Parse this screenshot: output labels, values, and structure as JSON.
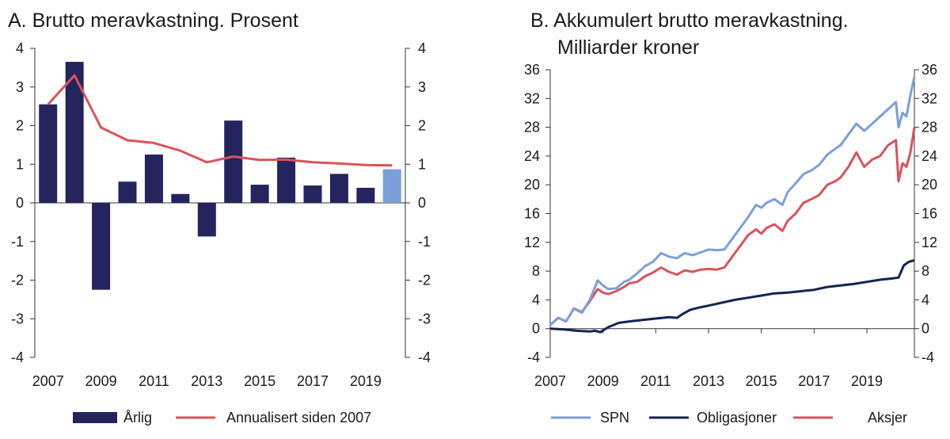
{
  "chart_data": [
    {
      "panel": "A",
      "type": "bar",
      "title": "A.  Brutto meravkastning. Prosent",
      "categories": [
        "2007",
        "2008",
        "2009",
        "2010",
        "2011",
        "2012",
        "2013",
        "2014",
        "2015",
        "2016",
        "2017",
        "2018",
        "2019",
        "2020"
      ],
      "x_tick_labels": [
        "2007",
        "2009",
        "2011",
        "2013",
        "2015",
        "2017",
        "2019"
      ],
      "ylim": [
        -4,
        4
      ],
      "y_ticks": [
        "4",
        "3",
        "2",
        "1",
        "0",
        "-1",
        "-2",
        "-3",
        "-4"
      ],
      "series": [
        {
          "name": "Årlig",
          "type": "bar",
          "color": "#24245e",
          "values": [
            2.55,
            3.65,
            -2.25,
            0.55,
            1.25,
            0.23,
            -0.87,
            2.13,
            0.47,
            1.17,
            0.45,
            0.75,
            0.39,
            0.87
          ],
          "highlight_last": true,
          "highlight_color": "#7b9fd9"
        },
        {
          "name": "Annualisert siden 2007",
          "type": "line",
          "color": "#d9535b",
          "values": [
            2.55,
            3.3,
            1.95,
            1.62,
            1.55,
            1.35,
            1.05,
            1.2,
            1.11,
            1.12,
            1.05,
            1.02,
            0.98,
            0.97
          ]
        }
      ],
      "grid": false,
      "legend_position": "bottom"
    },
    {
      "panel": "B",
      "type": "line",
      "title_line1": "B.  Akkumulert brutto meravkastning.",
      "title_line2": "Milliarder kroner",
      "x_tick_labels": [
        "2007",
        "2009",
        "2011",
        "2013",
        "2015",
        "2017",
        "2019"
      ],
      "xlim": [
        2007,
        2020.8
      ],
      "ylim": [
        -4,
        36
      ],
      "y_ticks": [
        "36",
        "32",
        "28",
        "24",
        "20",
        "16",
        "12",
        "8",
        "4",
        "0",
        "-4"
      ],
      "series": [
        {
          "name": "SPN",
          "color": "#7b9fd9",
          "x": [
            2007,
            2007.3,
            2007.6,
            2007.9,
            2008.2,
            2008.5,
            2008.8,
            2009.0,
            2009.2,
            2009.5,
            2009.8,
            2010.0,
            2010.3,
            2010.6,
            2010.9,
            2011.2,
            2011.5,
            2011.8,
            2012.1,
            2012.4,
            2012.7,
            2013.0,
            2013.3,
            2013.6,
            2013.9,
            2014.2,
            2014.5,
            2014.8,
            2015.0,
            2015.2,
            2015.5,
            2015.8,
            2016.0,
            2016.3,
            2016.6,
            2016.9,
            2017.2,
            2017.5,
            2017.8,
            2018.0,
            2018.3,
            2018.6,
            2018.9,
            2019.2,
            2019.5,
            2019.8,
            2020.1,
            2020.2,
            2020.35,
            2020.5,
            2020.65,
            2020.8
          ],
          "y": [
            0.5,
            1.5,
            1.0,
            2.8,
            2.2,
            4.0,
            6.7,
            6.0,
            5.5,
            5.6,
            6.5,
            6.8,
            7.7,
            8.7,
            9.3,
            10.5,
            10.0,
            9.8,
            10.5,
            10.2,
            10.6,
            11.0,
            10.9,
            11.0,
            12.5,
            14.0,
            15.5,
            17.2,
            16.8,
            17.5,
            18.0,
            17.2,
            19.0,
            20.2,
            21.5,
            22.0,
            22.8,
            24.2,
            25.0,
            25.5,
            27.0,
            28.5,
            27.5,
            28.5,
            29.5,
            30.5,
            31.5,
            28.0,
            30.0,
            29.5,
            32.5,
            35.0
          ]
        },
        {
          "name": "Obligasjoner",
          "color": "#14244f",
          "x": [
            2007,
            2007.5,
            2008.0,
            2008.5,
            2008.7,
            2008.9,
            2009.2,
            2009.6,
            2010.0,
            2010.5,
            2011.0,
            2011.5,
            2011.8,
            2012.0,
            2012.3,
            2012.6,
            2013.0,
            2013.5,
            2014.0,
            2014.5,
            2015.0,
            2015.5,
            2016.0,
            2016.5,
            2017.0,
            2017.5,
            2018.0,
            2018.5,
            2019.0,
            2019.5,
            2020.0,
            2020.2,
            2020.4,
            2020.6,
            2020.8
          ],
          "y": [
            0,
            -0.1,
            -0.3,
            -0.4,
            -0.3,
            -0.5,
            0.2,
            0.8,
            1.0,
            1.2,
            1.4,
            1.6,
            1.5,
            2.0,
            2.6,
            2.9,
            3.2,
            3.6,
            4.0,
            4.3,
            4.6,
            4.9,
            5.0,
            5.2,
            5.4,
            5.8,
            6.0,
            6.2,
            6.5,
            6.8,
            7.0,
            7.1,
            8.8,
            9.3,
            9.5
          ]
        },
        {
          "name": "Aksjer",
          "color": "#d9535b",
          "x": [
            2007,
            2007.3,
            2007.6,
            2007.9,
            2008.2,
            2008.5,
            2008.8,
            2009.0,
            2009.2,
            2009.5,
            2009.8,
            2010.0,
            2010.3,
            2010.6,
            2010.9,
            2011.2,
            2011.5,
            2011.8,
            2012.1,
            2012.4,
            2012.7,
            2013.0,
            2013.3,
            2013.6,
            2013.9,
            2014.2,
            2014.5,
            2014.8,
            2015.0,
            2015.2,
            2015.5,
            2015.8,
            2016.0,
            2016.3,
            2016.6,
            2016.9,
            2017.2,
            2017.5,
            2017.8,
            2018.0,
            2018.3,
            2018.6,
            2018.9,
            2019.2,
            2019.5,
            2019.8,
            2020.1,
            2020.2,
            2020.35,
            2020.5,
            2020.65,
            2020.8
          ],
          "y": [
            0.5,
            1.5,
            1.0,
            2.8,
            2.3,
            3.8,
            5.5,
            5.0,
            4.8,
            5.2,
            5.8,
            6.3,
            6.5,
            7.3,
            7.8,
            8.5,
            7.9,
            7.5,
            8.1,
            7.9,
            8.2,
            8.3,
            8.2,
            8.5,
            10.0,
            11.5,
            13.0,
            13.8,
            13.2,
            14.0,
            14.5,
            13.6,
            15.0,
            16.0,
            17.5,
            18.0,
            18.6,
            20.0,
            20.5,
            21.0,
            22.5,
            24.5,
            22.5,
            23.5,
            24.0,
            25.5,
            26.2,
            20.5,
            23.0,
            22.5,
            24.5,
            28.0
          ]
        }
      ],
      "grid": false,
      "legend_position": "bottom"
    }
  ]
}
